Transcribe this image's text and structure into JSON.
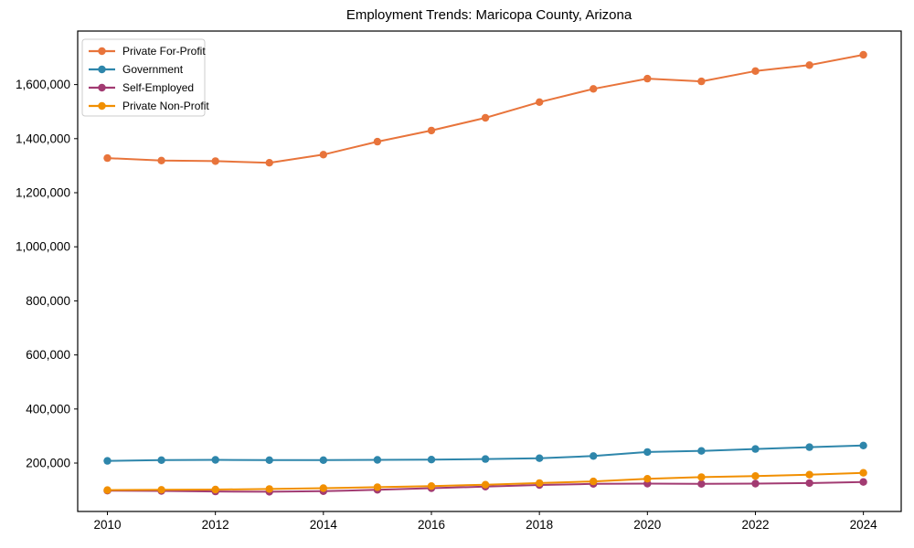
{
  "chart_data": {
    "type": "line",
    "title": "Employment Trends: Maricopa County, Arizona",
    "xlabel": "",
    "ylabel": "",
    "grid": false,
    "legend_position": "upper-left",
    "xlim": [
      2009.45,
      2024.7
    ],
    "ylim": [
      21000,
      1798000
    ],
    "x": [
      2010,
      2011,
      2012,
      2013,
      2014,
      2015,
      2016,
      2017,
      2018,
      2019,
      2020,
      2021,
      2022,
      2023,
      2024
    ],
    "x_ticks": [
      {
        "value": 2010,
        "label": "2010"
      },
      {
        "value": 2012,
        "label": "2012"
      },
      {
        "value": 2014,
        "label": "2014"
      },
      {
        "value": 2016,
        "label": "2016"
      },
      {
        "value": 2018,
        "label": "2018"
      },
      {
        "value": 2020,
        "label": "2020"
      },
      {
        "value": 2022,
        "label": "2022"
      },
      {
        "value": 2024,
        "label": "2024"
      }
    ],
    "y_ticks": [
      {
        "value": 200000,
        "label": "200,000"
      },
      {
        "value": 400000,
        "label": "400,000"
      },
      {
        "value": 600000,
        "label": "600,000"
      },
      {
        "value": 800000,
        "label": "800,000"
      },
      {
        "value": 1000000,
        "label": "1,000,000"
      },
      {
        "value": 1200000,
        "label": "1,200,000"
      },
      {
        "value": 1400000,
        "label": "1,400,000"
      },
      {
        "value": 1600000,
        "label": "1,600,000"
      }
    ],
    "series": [
      {
        "name": "Private For-Profit",
        "color": "#E8743B",
        "values": [
          1328000,
          1319000,
          1317000,
          1311000,
          1341000,
          1389000,
          1430000,
          1477000,
          1535000,
          1584000,
          1622000,
          1612000,
          1650000,
          1672000,
          1710000
        ]
      },
      {
        "name": "Government",
        "color": "#2E86AB",
        "values": [
          208000,
          211000,
          212000,
          211000,
          211000,
          212000,
          213000,
          215000,
          218000,
          226000,
          241000,
          245000,
          252000,
          259000,
          265000
        ]
      },
      {
        "name": "Self-Employed",
        "color": "#A23B72",
        "values": [
          98000,
          97000,
          95000,
          94000,
          96000,
          101000,
          107000,
          113000,
          119000,
          123000,
          124000,
          123000,
          124000,
          126000,
          130000
        ]
      },
      {
        "name": "Private Non-Profit",
        "color": "#F18F01",
        "values": [
          100000,
          101000,
          102000,
          104000,
          107000,
          111000,
          115000,
          120000,
          126000,
          132000,
          142000,
          148000,
          152000,
          157000,
          164000
        ]
      }
    ]
  }
}
